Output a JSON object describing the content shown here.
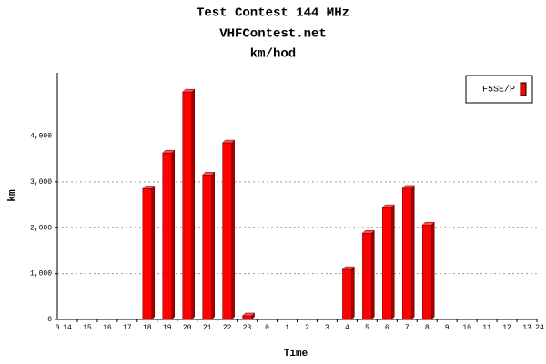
{
  "chart_data": {
    "type": "bar",
    "title": "Test Contest 144 MHz",
    "subtitle": "VHFContest.net",
    "subtitle2": "km/hod",
    "y_label": "km",
    "x_label": "Time",
    "categories": [
      "14",
      "15",
      "16",
      "17",
      "18",
      "19",
      "20",
      "21",
      "22",
      "23",
      "0",
      "1",
      "2",
      "3",
      "4",
      "5",
      "6",
      "7",
      "8",
      "9",
      "10",
      "11",
      "12",
      "13"
    ],
    "x_end_labels": [
      "0",
      "24"
    ],
    "series": [
      {
        "name": "F5SE/P",
        "color": "#ff0000",
        "values": [
          0,
          0,
          0,
          0,
          2850,
          3630,
          4960,
          3150,
          3850,
          80,
          0,
          0,
          0,
          0,
          1090,
          1880,
          2440,
          2860,
          2060,
          0,
          0,
          0,
          0,
          0
        ]
      }
    ],
    "ylim": [
      0,
      5380
    ],
    "yticks": [
      0,
      {
        "value": 1000,
        "label": "1,000"
      },
      {
        "value": 2000,
        "label": "2,000"
      },
      {
        "value": 3000,
        "label": "3,000"
      },
      {
        "value": 4000,
        "label": "4,000"
      }
    ],
    "grid": true,
    "legend": "top-right"
  }
}
